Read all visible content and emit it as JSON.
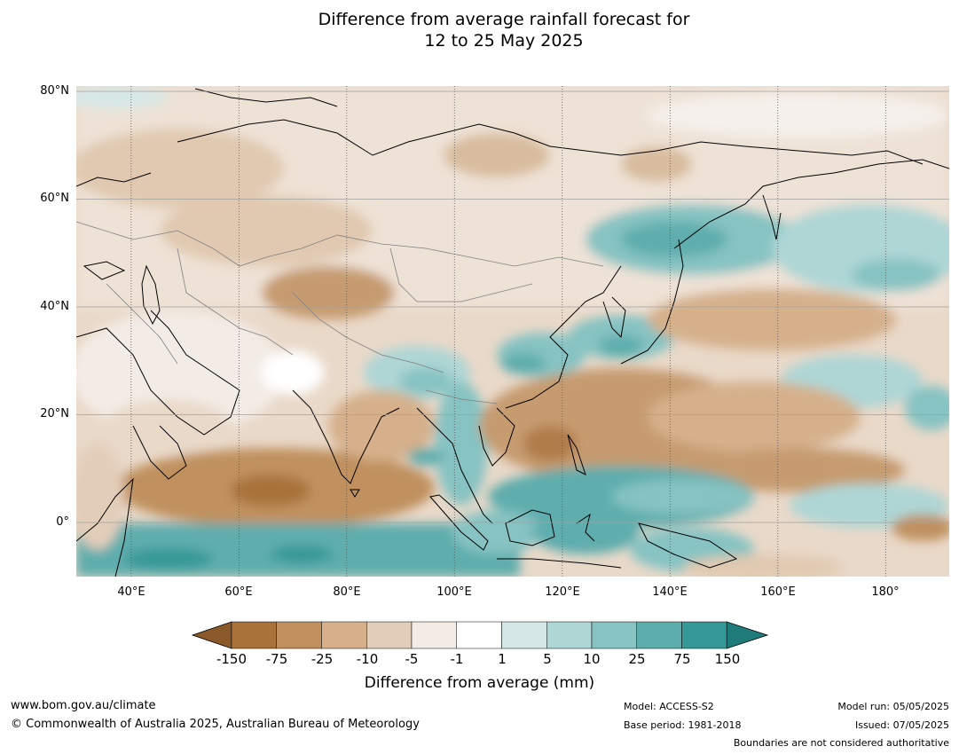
{
  "title": {
    "line1": "Difference from average rainfall forecast for",
    "line2": "12 to 25 May 2025"
  },
  "map": {
    "lat_labels": [
      "80°N",
      "60°N",
      "40°N",
      "20°N",
      "0°"
    ],
    "lon_labels": [
      "40°E",
      "60°E",
      "80°E",
      "100°E",
      "120°E",
      "140°E",
      "160°E",
      "180°"
    ],
    "extent": {
      "lon": [
        30,
        191
      ],
      "lat": [
        -10,
        81
      ]
    }
  },
  "legend": {
    "title": "Difference from average (mm)",
    "tick_labels": [
      "-150",
      "-75",
      "-25",
      "-10",
      "-5",
      "-1",
      "1",
      "5",
      "10",
      "25",
      "75",
      "150"
    ],
    "colors": [
      "#8b5a2b",
      "#a8723a",
      "#c0915f",
      "#d5b08b",
      "#e2cdb9",
      "#f3ece6",
      "#ffffff",
      "#d5e8e7",
      "#aed6d5",
      "#86c3c2",
      "#5eadad",
      "#349896",
      "#1f7c7a"
    ]
  },
  "footer": {
    "website": "www.bom.gov.au/climate",
    "copyright": "© Commonwealth of Australia 2025, Australian Bureau of Meteorology",
    "model": "Model: ACCESS-S2",
    "base_period": "Base period: 1981-2018",
    "model_run": "Model run: 05/05/2025",
    "issued": "Issued: 07/05/2025",
    "disclaimer": "Boundaries are not considered authoritative"
  }
}
